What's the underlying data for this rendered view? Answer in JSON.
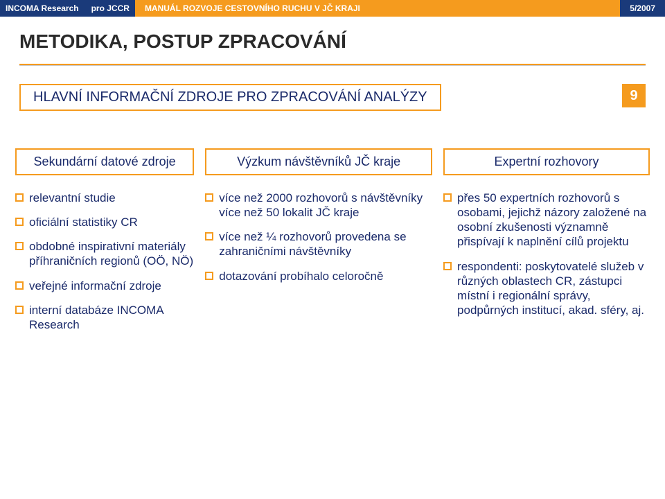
{
  "header": {
    "org": "INCOMA Research",
    "for": "pro JCCR",
    "title": "MANUÁL ROZVOJE CESTOVNÍHO RUCHU V JČ KRAJI",
    "date": "5/2007"
  },
  "main_title": "METODIKA, POSTUP ZPRACOVÁNÍ",
  "subhead": "HLAVNÍ INFORMAČNÍ ZDROJE PRO ZPRACOVÁNÍ ANALÝZY",
  "page_num": "9",
  "colors": {
    "accent": "#f59b1e",
    "navy": "#1a3a7a",
    "text_navy": "#1a2a6a",
    "bg": "#ffffff"
  },
  "columns": [
    {
      "header": "Sekundární datové zdroje",
      "items": [
        "relevantní studie",
        "oficiální statistiky CR",
        "obdobné inspirativní materiály příhraničních regionů (OÖ, NÖ)",
        "veřejné informační zdroje",
        "interní databáze INCOMA Research"
      ]
    },
    {
      "header": "Výzkum návštěvníků JČ kraje",
      "items": [
        "více než 2000 rozhovorů s návštěvníky více než 50 lokalit JČ kraje",
        "více než ¼ rozhovorů provedena se zahraničními návštěvníky",
        "dotazování probíhalo celoročně"
      ]
    },
    {
      "header": "Expertní rozhovory",
      "items": [
        "přes 50 expertních rozhovorů s osobami, jejichž názory založené na osobní zkušenosti významně přispívají k naplnění cílů projektu",
        "respondenti: poskytovatelé služeb v různých oblastech CR, zástupci místní i regionální správy, podpůrných institucí, akad. sféry, aj."
      ]
    }
  ]
}
